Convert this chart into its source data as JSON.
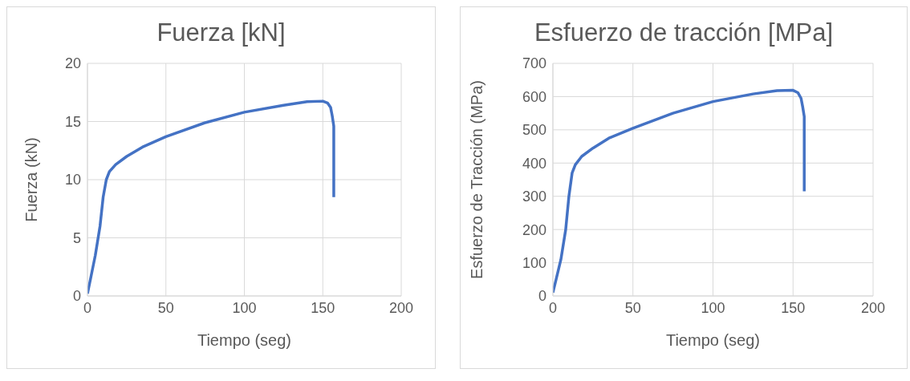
{
  "chart_data": [
    {
      "type": "line",
      "title": "Fuerza [kN]",
      "xlabel": "Tiempo  (seg)",
      "ylabel": "Fuerza  (kN)",
      "xlim": [
        0,
        200
      ],
      "xticks": [
        0,
        50,
        100,
        150,
        200
      ],
      "ylim": [
        0,
        20
      ],
      "yticks": [
        0,
        5,
        10,
        15,
        20
      ],
      "grid": true,
      "marker": "none",
      "line_style": "solid",
      "series": [
        {
          "color": "#4472c4",
          "x": [
            0,
            2,
            5,
            8,
            10,
            12,
            14,
            18,
            25,
            35,
            50,
            75,
            100,
            125,
            140,
            150,
            153,
            155,
            156,
            157,
            157
          ],
          "values": [
            0.2,
            1.5,
            3.5,
            6,
            8.5,
            10,
            10.7,
            11.3,
            12,
            12.8,
            13.7,
            14.9,
            15.8,
            16.4,
            16.7,
            16.75,
            16.6,
            16.2,
            15.5,
            14.6,
            8.5
          ]
        }
      ]
    },
    {
      "type": "line",
      "title": "Esfuerzo de tracción [MPa]",
      "xlabel": "Tiempo  (seg)",
      "ylabel": "Esfuerzo de Tracción (MPa)",
      "xlim": [
        0,
        200
      ],
      "xticks": [
        0,
        50,
        100,
        150,
        200
      ],
      "ylim": [
        0,
        700
      ],
      "yticks": [
        0,
        100,
        200,
        300,
        400,
        500,
        600,
        700
      ],
      "grid": true,
      "marker": "none",
      "line_style": "solid",
      "series": [
        {
          "color": "#4472c4",
          "x": [
            0,
            2,
            5,
            8,
            10,
            12,
            14,
            18,
            25,
            35,
            50,
            75,
            100,
            125,
            140,
            150,
            153,
            155,
            156,
            157,
            157
          ],
          "values": [
            10,
            50,
            110,
            200,
            300,
            370,
            395,
            420,
            445,
            475,
            505,
            550,
            585,
            608,
            618,
            619,
            612,
            595,
            570,
            540,
            315
          ]
        }
      ]
    }
  ]
}
